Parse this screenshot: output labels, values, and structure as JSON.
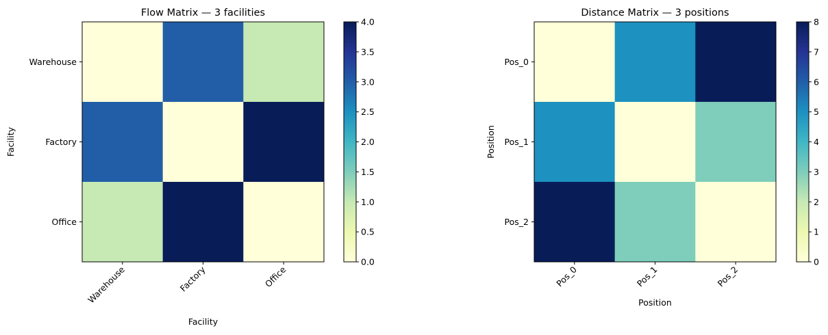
{
  "chart_data": [
    {
      "type": "heatmap",
      "title": "Flow Matrix — 3 facilities",
      "xlabel": "Facility",
      "ylabel": "Facility",
      "x_categories": [
        "Warehouse",
        "Factory",
        "Office"
      ],
      "y_categories": [
        "Warehouse",
        "Factory",
        "Office"
      ],
      "values": [
        [
          0,
          3,
          1
        ],
        [
          3,
          0,
          4
        ],
        [
          1,
          4,
          0
        ]
      ],
      "colormap": "YlGnBu",
      "colorbar": {
        "min": 0,
        "max": 4,
        "ticks": [
          "0.0",
          "0.5",
          "1.0",
          "1.5",
          "2.0",
          "2.5",
          "3.0",
          "3.5",
          "4.0"
        ]
      },
      "grid": false
    },
    {
      "type": "heatmap",
      "title": "Distance Matrix — 3 positions",
      "xlabel": "Position",
      "ylabel": "Position",
      "x_categories": [
        "Pos_0",
        "Pos_1",
        "Pos_2"
      ],
      "y_categories": [
        "Pos_0",
        "Pos_1",
        "Pos_2"
      ],
      "values": [
        [
          0,
          5,
          8
        ],
        [
          5,
          0,
          3
        ],
        [
          8,
          3,
          0
        ]
      ],
      "colormap": "YlGnBu",
      "colorbar": {
        "min": 0,
        "max": 8,
        "ticks": [
          "0",
          "1",
          "2",
          "3",
          "4",
          "5",
          "6",
          "7",
          "8"
        ]
      },
      "grid": false
    }
  ]
}
